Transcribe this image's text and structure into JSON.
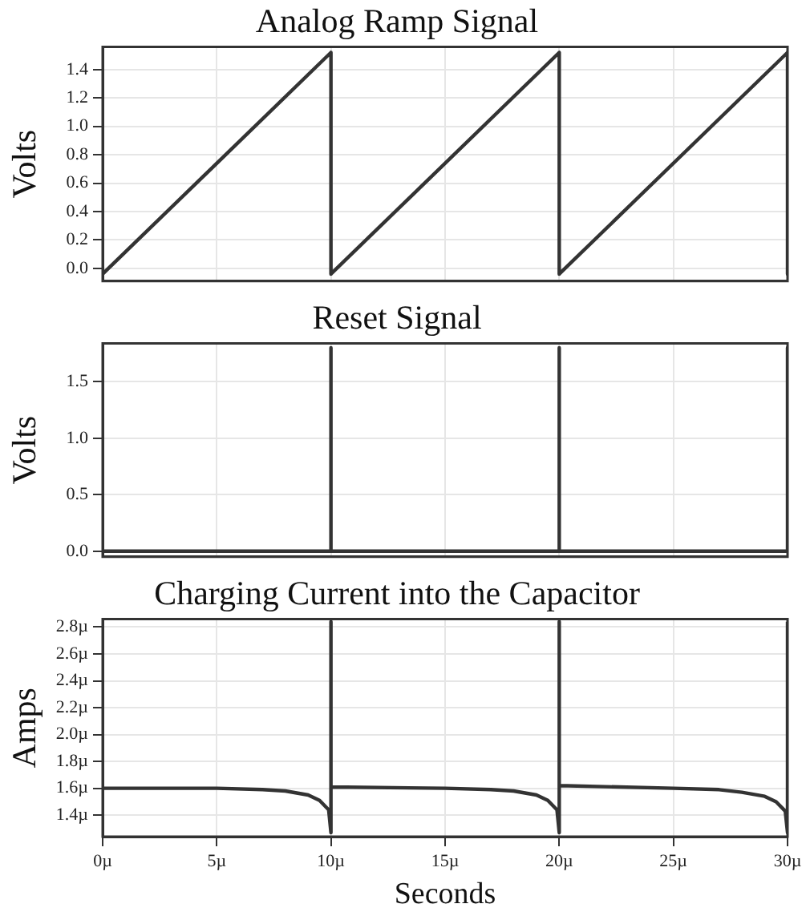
{
  "chart_data": [
    {
      "type": "line",
      "title": "Analog Ramp Signal",
      "ylabel": "Volts",
      "color": "#333333",
      "marker": "none",
      "line_style": "solid",
      "grid": true,
      "tick_labels": "y",
      "x": [
        0,
        10,
        10,
        20,
        20,
        30,
        30
      ],
      "values": [
        -0.04,
        1.52,
        -0.04,
        1.52,
        -0.04,
        1.52,
        -0.04
      ],
      "xlim": [
        0,
        30
      ],
      "xticks": [
        0,
        5,
        10,
        15,
        20,
        25,
        30
      ],
      "ylim": [
        -0.09,
        1.56
      ],
      "yticks": [
        {
          "value": 0,
          "label": "0.0"
        },
        0.2,
        0.4,
        0.6,
        0.8,
        {
          "value": 1,
          "label": "1.0"
        },
        1.2,
        1.4
      ]
    },
    {
      "type": "line",
      "title": "Reset Signal",
      "ylabel": "Volts",
      "color": "#333333",
      "marker": "none",
      "line_style": "solid",
      "grid": true,
      "tick_labels": "y",
      "x": [
        0,
        10,
        10,
        10,
        20,
        20,
        20,
        30,
        30,
        30
      ],
      "values": [
        0,
        0,
        1.8,
        0,
        0,
        1.8,
        0,
        0,
        1.8,
        0
      ],
      "xlim": [
        0,
        30
      ],
      "xticks": [
        0,
        5,
        10,
        15,
        20,
        25,
        30
      ],
      "ylim": [
        -0.05,
        1.84
      ],
      "yticks": [
        {
          "value": 0,
          "label": "0.0"
        },
        0.5,
        {
          "value": 1,
          "label": "1.0"
        },
        1.5
      ]
    },
    {
      "type": "line",
      "title": "Charging Current into the Capacitor",
      "xlabel": "Seconds",
      "ylabel": "Amps",
      "color": "#333333",
      "marker": "none",
      "line_style": "solid",
      "grid": true,
      "x": [
        0,
        5,
        7,
        8,
        9,
        9.5,
        9.9,
        10,
        10,
        10,
        15,
        17,
        18,
        19,
        19.5,
        19.9,
        20,
        20,
        20,
        25,
        27,
        28,
        29,
        29.5,
        29.9,
        30,
        30
      ],
      "values": [
        1.6,
        1.6,
        1.59,
        1.58,
        1.55,
        1.51,
        1.44,
        1.27,
        2.84,
        1.61,
        1.6,
        1.59,
        1.58,
        1.55,
        1.51,
        1.44,
        1.27,
        2.84,
        1.62,
        1.6,
        1.59,
        1.57,
        1.54,
        1.5,
        1.43,
        1.27,
        2.84
      ],
      "xlim": [
        0,
        30
      ],
      "xticks": [
        {
          "value": 0,
          "label": "0µ"
        },
        {
          "value": 5,
          "label": "5µ"
        },
        {
          "value": 10,
          "label": "10µ"
        },
        {
          "value": 15,
          "label": "15µ"
        },
        {
          "value": 20,
          "label": "20µ"
        },
        {
          "value": 25,
          "label": "25µ"
        },
        {
          "value": 30,
          "label": "30µ"
        }
      ],
      "ylim": [
        1.24,
        2.86
      ],
      "yticks": [
        {
          "value": 1.4,
          "label": "1.4µ"
        },
        {
          "value": 1.6,
          "label": "1.6µ"
        },
        {
          "value": 1.8,
          "label": "1.8µ"
        },
        {
          "value": 2,
          "label": "2.0µ"
        },
        {
          "value": 2.2,
          "label": "2.2µ"
        },
        {
          "value": 2.4,
          "label": "2.4µ"
        },
        {
          "value": 2.6,
          "label": "2.6µ"
        },
        {
          "value": 2.8,
          "label": "2.8µ"
        }
      ]
    }
  ]
}
